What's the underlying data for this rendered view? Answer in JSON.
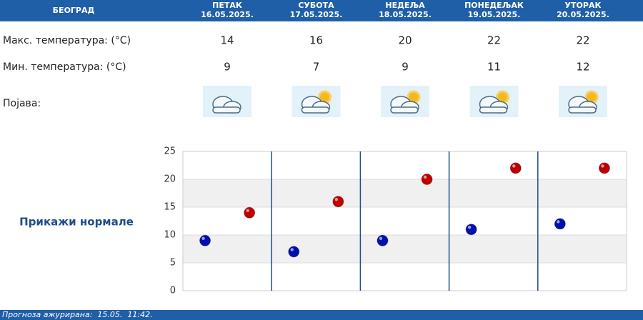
{
  "header": {
    "city": "БЕОГРАД"
  },
  "days": [
    {
      "name": "ПЕТАК",
      "date": "16.05.2025."
    },
    {
      "name": "СУБОТА",
      "date": "17.05.2025."
    },
    {
      "name": "НЕДЕЉА",
      "date": "18.05.2025."
    },
    {
      "name": "ПОНЕДЕЉАК",
      "date": "19.05.2025."
    },
    {
      "name": "УТОРАК",
      "date": "20.05.2025."
    }
  ],
  "rows": {
    "max_label": "Макс. температура: (°C)",
    "max": [
      14,
      16,
      20,
      22,
      22
    ],
    "min_label": "Мин. температура: (°C)",
    "min": [
      9,
      7,
      9,
      11,
      12
    ],
    "phenomenon_label": "Појава:"
  },
  "normals_link": "Прикажи нормале",
  "chart": {
    "ylim": [
      0,
      25
    ],
    "yticks": [
      0,
      5,
      10,
      15,
      20,
      25
    ],
    "max_color": "#c00000",
    "min_color": "#0010b0"
  },
  "footer": "Прогноза ажурирана:  15.05.  11:42."
}
